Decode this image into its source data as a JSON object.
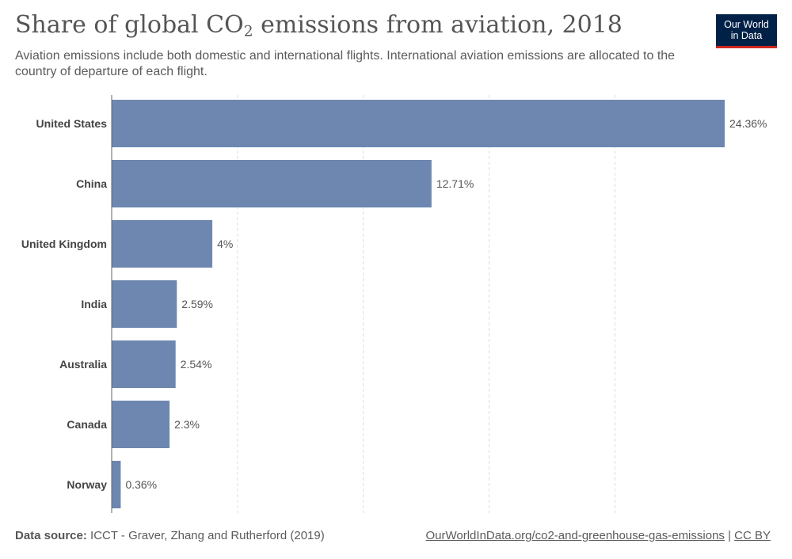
{
  "header": {
    "title_main": "Share of global CO",
    "title_sub": "2",
    "title_rest": " emissions from aviation, 2018",
    "subtitle": "Aviation emissions include both domestic and international flights. International aviation emissions are allocated to the country of departure of each flight."
  },
  "logo": {
    "line1": "Our World",
    "line2": "in Data"
  },
  "footer": {
    "source_label": "Data source:",
    "source_text": " ICCT - Graver, Zhang and Rutherford (2019)",
    "link_text": "OurWorldInData.org/co2-and-greenhouse-gas-emissions",
    "separator": " | ",
    "license": "CC BY"
  },
  "colors": {
    "bar": "#6d87b0",
    "grid": "#dddddd",
    "axis": "#666666",
    "label": "#444444",
    "value": "#555555"
  },
  "chart_data": {
    "type": "bar",
    "orientation": "horizontal",
    "categories": [
      "United States",
      "China",
      "United Kingdom",
      "India",
      "Australia",
      "Canada",
      "Norway"
    ],
    "values": [
      24.36,
      12.71,
      4,
      2.59,
      2.54,
      2.3,
      0.36
    ],
    "value_labels": [
      "24.36%",
      "12.71%",
      "4%",
      "2.59%",
      "2.54%",
      "2.3%",
      "0.36%"
    ],
    "xlim": [
      0,
      24.36
    ],
    "grid_values": [
      5,
      10,
      15,
      20
    ],
    "grid": true
  }
}
